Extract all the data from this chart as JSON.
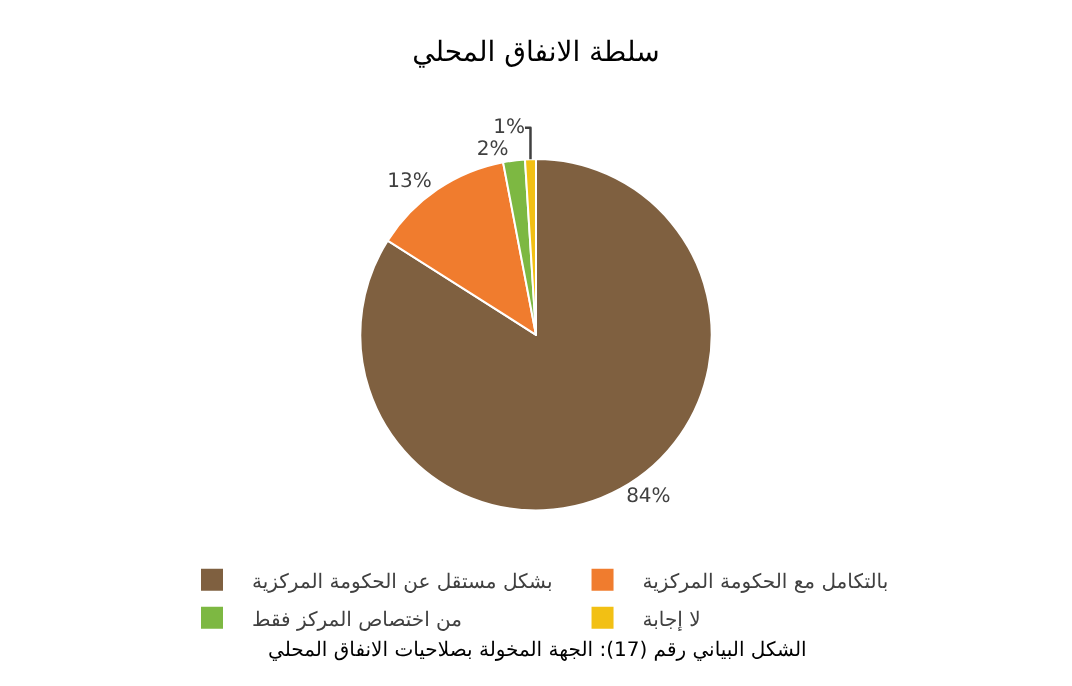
{
  "chart_data": {
    "type": "pie",
    "title": "سلطة الانفاق المحلي",
    "categories": [
      "بشكل مستقل عن الحكومة المركزية",
      "بالتكامل مع الحكومة المركزية",
      "من اختصاص المركز فقط",
      "لا إجابة"
    ],
    "values": [
      84,
      13,
      2,
      1
    ],
    "colors": [
      "#7f6040",
      "#f07c2e",
      "#7db842",
      "#f2c014"
    ],
    "value_labels": [
      "84%",
      "13%",
      "2%",
      "1%"
    ],
    "legend": "bottom",
    "annotations": [
      "الشكل البياني رقم (17): الجهة المخولة بصلاحيات الانفاق المحلي"
    ]
  }
}
